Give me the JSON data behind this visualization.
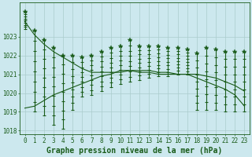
{
  "title": "Graphe pression niveau de la mer (hPa)",
  "background_color": "#cce8ee",
  "grid_color": "#aacccc",
  "line_color": "#1a5c1a",
  "hours": [
    0,
    1,
    2,
    3,
    4,
    5,
    6,
    7,
    8,
    9,
    10,
    11,
    12,
    13,
    14,
    15,
    16,
    17,
    18,
    19,
    20,
    21,
    22,
    23
  ],
  "max_vals": [
    1024.3,
    1023.3,
    1022.8,
    1022.4,
    1022.0,
    1022.0,
    1021.9,
    1022.0,
    1022.2,
    1022.4,
    1022.5,
    1022.8,
    1022.5,
    1022.5,
    1022.5,
    1022.4,
    1022.4,
    1022.3,
    1022.1,
    1022.4,
    1022.3,
    1022.2,
    1022.2,
    1022.2
  ],
  "min_vals": [
    1023.4,
    1019.0,
    1018.8,
    1018.3,
    1018.1,
    1019.1,
    1019.8,
    1019.9,
    1020.1,
    1020.3,
    1020.5,
    1020.6,
    1020.7,
    1020.8,
    1020.9,
    1020.9,
    1021.0,
    1021.0,
    1019.1,
    1019.1,
    1019.1,
    1019.0,
    1019.0,
    1019.0
  ],
  "trend1_vals": [
    1023.8,
    1023.1,
    1022.6,
    1022.2,
    1021.9,
    1021.6,
    1021.3,
    1021.1,
    1021.1,
    1021.1,
    1021.1,
    1021.2,
    1021.2,
    1021.2,
    1021.1,
    1021.1,
    1021.0,
    1021.0,
    1020.8,
    1020.6,
    1020.4,
    1020.2,
    1019.9,
    1019.3
  ],
  "trend2_vals": [
    1019.2,
    1019.3,
    1019.6,
    1019.9,
    1020.1,
    1020.3,
    1020.5,
    1020.7,
    1020.9,
    1021.0,
    1021.2,
    1021.2,
    1021.1,
    1021.1,
    1021.0,
    1021.0,
    1021.0,
    1021.0,
    1021.0,
    1020.9,
    1020.8,
    1020.6,
    1020.4,
    1020.1
  ],
  "ylim": [
    1017.8,
    1024.8
  ],
  "yticks": [
    1018,
    1019,
    1020,
    1021,
    1022,
    1023
  ],
  "tick_fontsize": 5.5,
  "xlabel_fontsize": 7.0
}
